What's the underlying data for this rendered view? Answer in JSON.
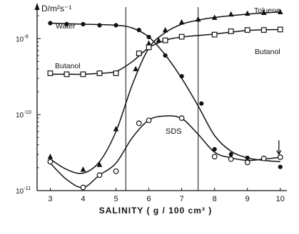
{
  "chart_data": {
    "type": "scatter",
    "title": "",
    "xlabel": "SALINITY  ( g / 100 cm³ )",
    "ylabel": "D/m²s⁻¹",
    "xlim": [
      2.6,
      10.2
    ],
    "yscale": "log",
    "ylim": [
      1e-11,
      2.6e-09
    ],
    "x_ticks": [
      "3",
      "4",
      "5",
      "6",
      "7",
      "8",
      "9",
      "10"
    ],
    "y_ticks": [
      {
        "base": "10",
        "exp": "-9",
        "value": 1e-09
      },
      {
        "base": "10",
        "exp": "-10",
        "value": 1e-10
      },
      {
        "base": "10",
        "exp": "-11",
        "value": 1e-11
      }
    ],
    "vertical_lines": [
      5.3,
      7.5
    ],
    "legend": "curve labels placed directly on the chart",
    "series": [
      {
        "name": "Water",
        "marker": "filled-circle",
        "points": [
          [
            3,
            1.6e-09
          ],
          [
            3.5,
            1.55e-09
          ],
          [
            4,
            1.55e-09
          ],
          [
            4.5,
            1.5e-09
          ],
          [
            5,
            1.5e-09
          ],
          [
            5.7,
            1.3e-09
          ],
          [
            6,
            1.05e-09
          ],
          [
            6.5,
            6e-10
          ],
          [
            7,
            3.2e-10
          ],
          [
            7.6,
            1.4e-10
          ],
          [
            8,
            3.5e-11
          ],
          [
            8.5,
            3e-11
          ],
          [
            9,
            2.7e-11
          ],
          [
            10,
            2.05e-11
          ]
        ]
      },
      {
        "name": "Toluene",
        "marker": "filled-triangle",
        "points": [
          [
            3,
            2.8e-11
          ],
          [
            4,
            1.9e-11
          ],
          [
            4.5,
            2.2e-11
          ],
          [
            5,
            6.5e-11
          ],
          [
            5.6,
            4e-10
          ],
          [
            6,
            8.7e-10
          ],
          [
            6.3,
            9.5e-10
          ],
          [
            6.5,
            1.3e-09
          ],
          [
            7,
            1.65e-09
          ],
          [
            7.5,
            1.8e-09
          ],
          [
            8,
            1.9e-09
          ],
          [
            8.5,
            2.1e-09
          ],
          [
            9,
            2.15e-09
          ],
          [
            9.5,
            2.2e-09
          ],
          [
            10,
            2.25e-09
          ]
        ]
      },
      {
        "name": "Butanol",
        "marker": "open-square",
        "points": [
          [
            3,
            3.5e-10
          ],
          [
            3.5,
            3.4e-10
          ],
          [
            4,
            3.4e-10
          ],
          [
            4.5,
            3.5e-10
          ],
          [
            5,
            3.5e-10
          ],
          [
            5.7,
            6.4e-10
          ],
          [
            6,
            7.7e-10
          ],
          [
            6.5,
            9.5e-10
          ],
          [
            7,
            1.06e-09
          ],
          [
            8,
            1.13e-09
          ],
          [
            8.5,
            1.25e-09
          ],
          [
            9,
            1.3e-09
          ],
          [
            9.5,
            1.3e-09
          ],
          [
            10,
            1.32e-09
          ]
        ]
      },
      {
        "name": "SDS",
        "marker": "open-circle",
        "points": [
          [
            3,
            2.4e-11
          ],
          [
            4,
            1.1e-11
          ],
          [
            4.5,
            1.6e-11
          ],
          [
            5,
            1.8e-11
          ],
          [
            5.7,
            7.7e-11
          ],
          [
            6,
            8.4e-11
          ],
          [
            7,
            9e-11
          ],
          [
            8,
            2.8e-11
          ],
          [
            8.5,
            2.6e-11
          ],
          [
            9,
            2.35e-11
          ],
          [
            9.5,
            2.65e-11
          ],
          [
            10,
            2.75e-11
          ]
        ]
      }
    ],
    "curve_labels": {
      "water": "Water",
      "toluene": "Toluene",
      "butanol_left": "Butanol",
      "butanol_right": "Butanol",
      "sds": "SDS"
    }
  }
}
